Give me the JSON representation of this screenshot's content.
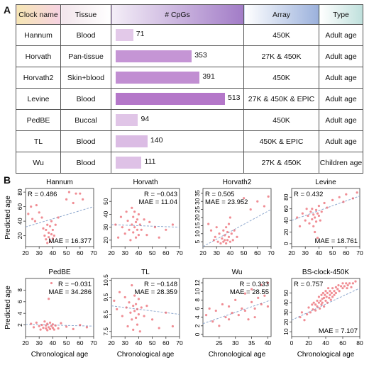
{
  "panel_labels": {
    "a": "A",
    "b": "B"
  },
  "colors": {
    "bar_max": "#b477c9",
    "bar_min": "#ead6ee",
    "point": "#e8505a",
    "trend": "#8fa9cf"
  },
  "table": {
    "headers": [
      "Clock name",
      "Tissue",
      "# CpGs",
      "Array",
      "Type"
    ],
    "rows": [
      {
        "name": "Hannum",
        "tissue": "Blood",
        "cpgs": 71,
        "cpgs_label": "71",
        "array": "450K",
        "type": "Adult age"
      },
      {
        "name": "Horvath",
        "tissue": "Pan-tissue",
        "cpgs": 353,
        "cpgs_label": "353",
        "array": "27K & 450K",
        "type": "Adult age"
      },
      {
        "name": "Horvath2",
        "tissue": "Skin+blood",
        "cpgs": 391,
        "cpgs_label": "391",
        "array": "450K",
        "type": "Adult age"
      },
      {
        "name": "Levine",
        "tissue": "Blood",
        "cpgs": 513,
        "cpgs_label": "513",
        "array": "27K & 450K & EPIC",
        "type": "Adult age"
      },
      {
        "name": "PedBE",
        "tissue": "Buccal",
        "cpgs": 94,
        "cpgs_label": "94",
        "array": "450K",
        "type": "Adult age"
      },
      {
        "name": "TL",
        "tissue": "Blood",
        "cpgs": 140,
        "cpgs_label": "140",
        "array": "450K & EPIC",
        "type": "Adult age"
      },
      {
        "name": "Wu",
        "tissue": "Blood",
        "cpgs": 111,
        "cpgs_label": "111",
        "array": "27K & 450K",
        "type": "Children age"
      }
    ]
  },
  "chart_data": [
    {
      "type": "scatter",
      "title": "Hannum",
      "xlabel": "",
      "ylabel": "Predicted age",
      "xlim": [
        20,
        70
      ],
      "ylim": [
        5,
        85
      ],
      "xticks": [
        20,
        30,
        40,
        50,
        60,
        70
      ],
      "yticks": [
        20,
        40,
        60,
        80
      ],
      "r_label": "R = 0.486",
      "mae_label": "MAE = 16.377",
      "r_pos": "top-left",
      "mae_pos": "bottom-right",
      "trend": [
        [
          20,
          32
        ],
        [
          70,
          60
        ]
      ],
      "points": [
        [
          22,
          50
        ],
        [
          24,
          60
        ],
        [
          25,
          43
        ],
        [
          27,
          40
        ],
        [
          28,
          62
        ],
        [
          30,
          52
        ],
        [
          32,
          45
        ],
        [
          33,
          30
        ],
        [
          34,
          20
        ],
        [
          35,
          15
        ],
        [
          35,
          28
        ],
        [
          36,
          10
        ],
        [
          36,
          35
        ],
        [
          37,
          24
        ],
        [
          37,
          18
        ],
        [
          38,
          33
        ],
        [
          38,
          12
        ],
        [
          39,
          40
        ],
        [
          39,
          22
        ],
        [
          40,
          28
        ],
        [
          40,
          16
        ],
        [
          41,
          20
        ],
        [
          42,
          35
        ],
        [
          44,
          45
        ],
        [
          50,
          70
        ],
        [
          52,
          80
        ],
        [
          55,
          65
        ],
        [
          57,
          78
        ],
        [
          60,
          78
        ],
        [
          62,
          70
        ]
      ]
    },
    {
      "type": "scatter",
      "title": "Horvath",
      "xlabel": "",
      "ylabel": "",
      "xlim": [
        20,
        70
      ],
      "ylim": [
        15,
        60
      ],
      "xticks": [
        20,
        30,
        40,
        50,
        60,
        70
      ],
      "yticks": [
        20,
        30,
        40,
        50
      ],
      "r_label": "R = −0.043",
      "mae_label": "MAE = 11.04",
      "r_pos": "top-right",
      "mae_pos": "top-right-2",
      "trend": [
        [
          20,
          32
        ],
        [
          70,
          30
        ]
      ],
      "points": [
        [
          23,
          32
        ],
        [
          25,
          22
        ],
        [
          27,
          38
        ],
        [
          28,
          30
        ],
        [
          30,
          25
        ],
        [
          31,
          42
        ],
        [
          32,
          35
        ],
        [
          33,
          28
        ],
        [
          34,
          20
        ],
        [
          35,
          45
        ],
        [
          35,
          32
        ],
        [
          36,
          26
        ],
        [
          36,
          38
        ],
        [
          37,
          30
        ],
        [
          37,
          42
        ],
        [
          38,
          22
        ],
        [
          38,
          34
        ],
        [
          39,
          28
        ],
        [
          39,
          36
        ],
        [
          40,
          40
        ],
        [
          40,
          24
        ],
        [
          41,
          32
        ],
        [
          42,
          28
        ],
        [
          44,
          36
        ],
        [
          46,
          24
        ],
        [
          48,
          34
        ],
        [
          52,
          30
        ],
        [
          55,
          22
        ],
        [
          60,
          28
        ],
        [
          65,
          32
        ]
      ]
    },
    {
      "type": "scatter",
      "title": "Horvath2",
      "xlabel": "",
      "ylabel": "",
      "xlim": [
        20,
        70
      ],
      "ylim": [
        2,
        38
      ],
      "xticks": [
        20,
        30,
        40,
        50,
        60,
        70
      ],
      "yticks": [
        5,
        10,
        15,
        20,
        25,
        30,
        35
      ],
      "r_label": "R = 0.505",
      "mae_label": "MAE = 23.952",
      "r_pos": "top-left",
      "mae_pos": "top-left-2",
      "trend": [
        [
          20,
          2
        ],
        [
          70,
          25
        ]
      ],
      "points": [
        [
          24,
          16
        ],
        [
          26,
          12
        ],
        [
          28,
          6
        ],
        [
          29,
          8
        ],
        [
          30,
          14
        ],
        [
          31,
          5
        ],
        [
          32,
          10
        ],
        [
          33,
          4
        ],
        [
          34,
          7
        ],
        [
          35,
          5
        ],
        [
          35,
          12
        ],
        [
          36,
          6
        ],
        [
          36,
          9
        ],
        [
          37,
          4
        ],
        [
          37,
          14
        ],
        [
          38,
          6
        ],
        [
          38,
          11
        ],
        [
          39,
          8
        ],
        [
          39,
          16
        ],
        [
          40,
          5
        ],
        [
          40,
          20
        ],
        [
          41,
          10
        ],
        [
          42,
          6
        ],
        [
          43,
          12
        ],
        [
          45,
          8
        ],
        [
          50,
          32
        ],
        [
          55,
          25
        ],
        [
          60,
          30
        ],
        [
          65,
          27
        ],
        [
          68,
          33
        ]
      ]
    },
    {
      "type": "scatter",
      "title": "Levine",
      "xlabel": "",
      "ylabel": "",
      "xlim": [
        20,
        70
      ],
      "ylim": [
        -5,
        95
      ],
      "xticks": [
        20,
        30,
        40,
        50,
        60,
        70
      ],
      "yticks": [
        0,
        20,
        40,
        60,
        80
      ],
      "r_label": "R = 0.432",
      "mae_label": "MAE = 18.761",
      "r_pos": "top-left",
      "mae_pos": "bottom-right",
      "trend": [
        [
          20,
          40
        ],
        [
          70,
          82
        ]
      ],
      "points": [
        [
          24,
          45
        ],
        [
          26,
          30
        ],
        [
          28,
          52
        ],
        [
          30,
          40
        ],
        [
          31,
          60
        ],
        [
          32,
          48
        ],
        [
          33,
          35
        ],
        [
          34,
          55
        ],
        [
          35,
          42
        ],
        [
          35,
          60
        ],
        [
          36,
          30
        ],
        [
          36,
          50
        ],
        [
          37,
          45
        ],
        [
          37,
          20
        ],
        [
          38,
          58
        ],
        [
          38,
          38
        ],
        [
          39,
          52
        ],
        [
          39,
          10
        ],
        [
          40,
          48
        ],
        [
          40,
          65
        ],
        [
          41,
          40
        ],
        [
          42,
          55
        ],
        [
          44,
          70
        ],
        [
          46,
          62
        ],
        [
          50,
          75
        ],
        [
          55,
          80
        ],
        [
          58,
          72
        ],
        [
          60,
          85
        ],
        [
          65,
          78
        ],
        [
          68,
          88
        ]
      ]
    },
    {
      "type": "scatter",
      "title": "PedBE",
      "xlabel": "Chronological age",
      "ylabel": "Predicted age",
      "xlim": [
        20,
        70
      ],
      "ylim": [
        0,
        10
      ],
      "xticks": [
        20,
        30,
        40,
        50,
        60,
        70
      ],
      "yticks": [
        2,
        4,
        6,
        8
      ],
      "r_label": "R = −0.031",
      "mae_label": "MAE = 34.286",
      "r_pos": "top-right",
      "mae_pos": "top-right-2",
      "trend": [
        [
          20,
          2.1
        ],
        [
          70,
          1.8
        ]
      ],
      "points": [
        [
          24,
          2.2
        ],
        [
          26,
          1.6
        ],
        [
          28,
          2.4
        ],
        [
          30,
          1.8
        ],
        [
          31,
          1.2
        ],
        [
          32,
          2.0
        ],
        [
          33,
          1.5
        ],
        [
          34,
          2.6
        ],
        [
          35,
          1.4
        ],
        [
          35,
          1.9
        ],
        [
          36,
          1.1
        ],
        [
          36,
          2.2
        ],
        [
          37,
          1.6
        ],
        [
          37,
          6.5
        ],
        [
          38,
          1.3
        ],
        [
          38,
          2.4
        ],
        [
          39,
          1.8
        ],
        [
          39,
          9.2
        ],
        [
          40,
          1.5
        ],
        [
          40,
          2.1
        ],
        [
          41,
          1.2
        ],
        [
          42,
          1.9
        ],
        [
          44,
          1.4
        ],
        [
          46,
          2.3
        ],
        [
          50,
          1.7
        ],
        [
          55,
          1.3
        ],
        [
          60,
          2.0
        ],
        [
          65,
          1.6
        ]
      ]
    },
    {
      "type": "scatter",
      "title": "TL",
      "xlabel": "Chronological age",
      "ylabel": "",
      "xlim": [
        20,
        70
      ],
      "ylim": [
        7.2,
        10.6
      ],
      "xticks": [
        20,
        30,
        40,
        50,
        60,
        70
      ],
      "yticks": [
        7.5,
        8.5,
        9.5,
        10.5
      ],
      "r_label": "R = −0.148",
      "mae_label": "MAE = 28.359",
      "r_pos": "top-right",
      "mae_pos": "top-right-2",
      "trend": [
        [
          20,
          9.0
        ],
        [
          70,
          8.5
        ]
      ],
      "points": [
        [
          22,
          9.3
        ],
        [
          24,
          8.8
        ],
        [
          26,
          9.8
        ],
        [
          28,
          8.4
        ],
        [
          30,
          9.5
        ],
        [
          31,
          8.9
        ],
        [
          32,
          7.8
        ],
        [
          33,
          9.2
        ],
        [
          34,
          8.6
        ],
        [
          35,
          10.2
        ],
        [
          35,
          8.2
        ],
        [
          36,
          9.0
        ],
        [
          36,
          7.6
        ],
        [
          37,
          8.7
        ],
        [
          37,
          9.6
        ],
        [
          38,
          8.3
        ],
        [
          38,
          9.1
        ],
        [
          39,
          7.9
        ],
        [
          39,
          8.8
        ],
        [
          40,
          9.4
        ],
        [
          40,
          8.5
        ],
        [
          41,
          7.5
        ],
        [
          42,
          8.9
        ],
        [
          44,
          8.4
        ],
        [
          46,
          9.0
        ],
        [
          50,
          8.2
        ],
        [
          55,
          7.7
        ],
        [
          60,
          8.6
        ],
        [
          65,
          7.8
        ]
      ]
    },
    {
      "type": "scatter",
      "title": "Wu",
      "xlabel": "Chronological age",
      "ylabel": "",
      "xlim": [
        20,
        41
      ],
      "ylim": [
        -0.5,
        13
      ],
      "xticks": [
        25,
        30,
        35,
        40
      ],
      "yticks": [
        0,
        2,
        4,
        6,
        8,
        10,
        12
      ],
      "r_label": "R = 0.333",
      "mae_label": "MAE = 28.55",
      "r_pos": "top-right",
      "mae_pos": "top-right-2",
      "trend": [
        [
          20,
          2.5
        ],
        [
          41,
          8.0
        ]
      ],
      "points": [
        [
          21,
          4.5
        ],
        [
          22,
          6.0
        ],
        [
          23,
          3.0
        ],
        [
          24,
          5.5
        ],
        [
          25,
          2.0
        ],
        [
          26,
          7.0
        ],
        [
          27,
          4.0
        ],
        [
          28,
          6.5
        ],
        [
          28,
          3.5
        ],
        [
          29,
          5.0
        ],
        [
          30,
          8.0
        ],
        [
          31,
          4.5
        ],
        [
          32,
          6.0
        ],
        [
          33,
          5.5
        ],
        [
          33,
          9.5
        ],
        [
          34,
          3.5
        ],
        [
          35,
          7.5
        ],
        [
          35,
          10.5
        ],
        [
          36,
          6.0
        ],
        [
          36,
          4.0
        ],
        [
          37,
          8.5
        ],
        [
          38,
          7.0
        ],
        [
          38,
          11.5
        ],
        [
          39,
          9.0
        ],
        [
          40,
          6.5
        ],
        [
          40,
          12.0
        ]
      ]
    },
    {
      "type": "scatter",
      "title": "BS-clock-450K",
      "xlabel": "Chronological age",
      "ylabel": "",
      "xlim": [
        0,
        80
      ],
      "ylim": [
        5,
        65
      ],
      "xticks": [
        0,
        20,
        40,
        60,
        80
      ],
      "yticks": [
        10,
        20,
        30,
        40,
        50
      ],
      "r_label": "R = 0.757",
      "mae_label": "MAE = 7.107",
      "r_pos": "top-left",
      "mae_pos": "bottom-right",
      "trend": [
        [
          0,
          22
        ],
        [
          80,
          55
        ]
      ],
      "points": [
        [
          10,
          25
        ],
        [
          12,
          30
        ],
        [
          15,
          22
        ],
        [
          18,
          28
        ],
        [
          20,
          35
        ],
        [
          22,
          30
        ],
        [
          24,
          38
        ],
        [
          25,
          33
        ],
        [
          26,
          40
        ],
        [
          28,
          32
        ],
        [
          28,
          38
        ],
        [
          30,
          42
        ],
        [
          30,
          36
        ],
        [
          32,
          40
        ],
        [
          32,
          46
        ],
        [
          33,
          34
        ],
        [
          34,
          42
        ],
        [
          35,
          38
        ],
        [
          35,
          48
        ],
        [
          36,
          44
        ],
        [
          36,
          40
        ],
        [
          37,
          50
        ],
        [
          38,
          45
        ],
        [
          38,
          36
        ],
        [
          39,
          48
        ],
        [
          40,
          42
        ],
        [
          40,
          52
        ],
        [
          41,
          46
        ],
        [
          42,
          40
        ],
        [
          42,
          50
        ],
        [
          43,
          55
        ],
        [
          44,
          45
        ],
        [
          45,
          48
        ],
        [
          45,
          52
        ],
        [
          46,
          43
        ],
        [
          47,
          50
        ],
        [
          48,
          55
        ],
        [
          48,
          46
        ],
        [
          50,
          52
        ],
        [
          50,
          48
        ],
        [
          52,
          56
        ],
        [
          52,
          50
        ],
        [
          54,
          54
        ],
        [
          55,
          58
        ],
        [
          56,
          52
        ],
        [
          58,
          57
        ],
        [
          60,
          55
        ],
        [
          60,
          60
        ],
        [
          62,
          57
        ],
        [
          64,
          60
        ],
        [
          65,
          55
        ],
        [
          66,
          58
        ],
        [
          68,
          60
        ],
        [
          70,
          56
        ],
        [
          72,
          60
        ],
        [
          75,
          62
        ]
      ]
    }
  ]
}
